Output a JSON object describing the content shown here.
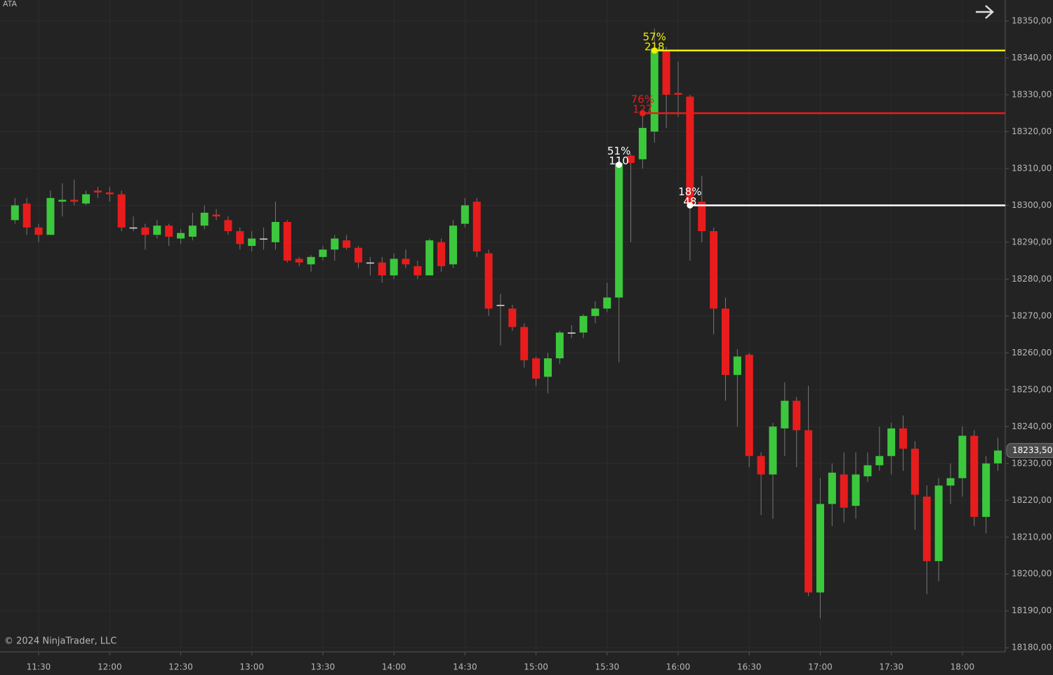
{
  "chart_data": {
    "type": "candlestick",
    "title": "ATA",
    "copyright": "© 2024 NinjaTrader, LLC",
    "categories": [
      null,
      null,
      "11:30",
      null,
      null,
      null,
      null,
      null,
      "12:00",
      null,
      null,
      null,
      null,
      null,
      "12:30",
      null,
      null,
      null,
      null,
      null,
      "13:00",
      null,
      null,
      null,
      null,
      null,
      "13:30",
      null,
      null,
      null,
      null,
      null,
      "14:00",
      null,
      null,
      null,
      null,
      null,
      "14:30",
      null,
      null,
      null,
      null,
      null,
      "15:00",
      null,
      null,
      null,
      null,
      null,
      "15:30",
      null,
      null,
      null,
      null,
      null,
      "16:00",
      null,
      null,
      null,
      null,
      null,
      "16:30",
      null,
      null,
      null,
      null,
      null,
      "17:00",
      null,
      null,
      null,
      null,
      null,
      "17:30",
      null,
      null,
      null,
      null,
      null,
      "18:00",
      null,
      null,
      null
    ],
    "open": [
      18296,
      18300.5,
      18294,
      18292,
      18301,
      18301.5,
      18300.5,
      18304,
      18303.5,
      18303,
      18294,
      18294,
      18292,
      18294.5,
      18291,
      18291.5,
      18294.5,
      18297.5,
      18296,
      18293,
      18289,
      18291,
      18290,
      18295.5,
      18285.5,
      18284,
      18286,
      18288,
      18290.5,
      18288.5,
      18284.5,
      18284.5,
      18281,
      18285.5,
      18283.5,
      18281,
      18290,
      18284,
      18295,
      18301,
      18287,
      18273,
      18272,
      18267,
      18258.5,
      18253.5,
      18258.5,
      18265.5,
      18265.5,
      18270,
      18272,
      18275,
      18313.5,
      18312.5,
      18320,
      18342,
      18330.5,
      18329.5,
      18301,
      18293,
      18272,
      18254,
      18259.5,
      18232,
      18227,
      18239.5,
      18247,
      18239,
      18195,
      18219,
      18227,
      18218.5,
      18226.5,
      18229.5,
      18232,
      18239.5,
      18234,
      18221,
      18203.5,
      18224,
      18226,
      18237.5,
      18215.5,
      18230
    ],
    "high": [
      18302,
      18302,
      18295,
      18304,
      18306,
      18307,
      18304,
      18305,
      18305,
      18304,
      18297,
      18295,
      18296,
      18295,
      18293.5,
      18298,
      18300,
      18299,
      18297,
      18294,
      18293,
      18294,
      18301,
      18296,
      18286,
      18286.5,
      18289,
      18292,
      18292,
      18289,
      18286,
      18286,
      18287,
      18288,
      18285,
      18291,
      18291,
      18296,
      18302,
      18302,
      18288,
      18276,
      18273,
      18268,
      18259,
      18260,
      18266,
      18267.5,
      18270.5,
      18274,
      18279,
      18313,
      18314,
      18326,
      18348,
      18343,
      18339,
      18330,
      18308,
      18294,
      18275,
      18261,
      18260,
      18233,
      18241,
      18252,
      18248,
      18251,
      18226,
      18230,
      18233,
      18233,
      18233,
      18240,
      18241,
      18243,
      18236,
      18224,
      18226,
      18230,
      18240,
      18239,
      18232,
      18237
    ],
    "low": [
      18295,
      18292,
      18290,
      18292,
      18297,
      18300,
      18300,
      18302,
      18301,
      18293,
      18293,
      18288,
      18291,
      18289,
      18289.5,
      18290.5,
      18293.5,
      18296,
      18292,
      18288,
      18287.5,
      18288,
      18288,
      18284.5,
      18283.5,
      18282,
      18285,
      18285,
      18288,
      18283,
      18281,
      18279,
      18280,
      18283,
      18280,
      18281,
      18282,
      18283,
      18294,
      18286,
      18270,
      18262,
      18266,
      18256,
      18251,
      18249,
      18257,
      18264,
      18264,
      18268,
      18271,
      18257.5,
      18290,
      18310,
      18317,
      18321,
      18324,
      18285,
      18290,
      18265,
      18247,
      18240,
      18229,
      18216,
      18215,
      18232,
      18229,
      18194,
      18188,
      18213,
      18214,
      18215,
      18225,
      18228,
      18227,
      18228,
      18212,
      18194.5,
      18198,
      18219,
      18221,
      18213,
      18211,
      18228
    ],
    "close": [
      18300,
      18294,
      18292,
      18302,
      18301.5,
      18301,
      18303,
      18303.5,
      18303,
      18294,
      18294,
      18292,
      18294.5,
      18291.5,
      18292.5,
      18294.5,
      18298,
      18297,
      18293,
      18289.5,
      18291,
      18291,
      18295.5,
      18285,
      18284.5,
      18286,
      18288,
      18291,
      18288.5,
      18284.5,
      18284.5,
      18281,
      18285.5,
      18284,
      18281,
      18290.5,
      18283.5,
      18294.5,
      18300,
      18287.5,
      18272,
      18273,
      18267,
      18258,
      18253,
      18258.5,
      18265.5,
      18265.5,
      18270,
      18272,
      18275,
      18311.5,
      18311.5,
      18321,
      18342.5,
      18330,
      18330,
      18300.5,
      18293,
      18272,
      18254,
      18259,
      18232,
      18227,
      18240,
      18247,
      18239,
      18195,
      18219,
      18227.5,
      18218,
      18227,
      18229.5,
      18232,
      18239.5,
      18234,
      18221.5,
      18203.5,
      18224,
      18226,
      18237.5,
      18215.5,
      18230,
      18233.5
    ],
    "up_color": "#3cc83c",
    "down_color": "#e81c1c",
    "doji_color": "#e0e0e0",
    "ylim": [
      18178.9,
      18355.7
    ],
    "yticks": [
      {
        "value": 18180,
        "label": "18180,00"
      },
      {
        "value": 18190,
        "label": "18190,00"
      },
      {
        "value": 18200,
        "label": "18200,00"
      },
      {
        "value": 18210,
        "label": "18210,00"
      },
      {
        "value": 18220,
        "label": "18220,00"
      },
      {
        "value": 18230,
        "label": "18230,00"
      },
      {
        "value": 18240,
        "label": "18240,00"
      },
      {
        "value": 18250,
        "label": "18250,00"
      },
      {
        "value": 18260,
        "label": "18260,00"
      },
      {
        "value": 18270,
        "label": "18270,00"
      },
      {
        "value": 18280,
        "label": "18280,00"
      },
      {
        "value": 18290,
        "label": "18290,00"
      },
      {
        "value": 18300,
        "label": "18300,00"
      },
      {
        "value": 18310,
        "label": "18310,00"
      },
      {
        "value": 18320,
        "label": "18320,00"
      },
      {
        "value": 18330,
        "label": "18330,00"
      },
      {
        "value": 18340,
        "label": "18340,00"
      },
      {
        "value": 18350,
        "label": "18350,00"
      }
    ],
    "grid": true,
    "last_price": {
      "value": 18233.5,
      "label": "18233,50"
    },
    "levels": [
      {
        "bar": 51,
        "price": 18311,
        "color": "#ffffff",
        "pct": "51%",
        "count": "110",
        "extend": false
      },
      {
        "bar": 53,
        "price": 18325,
        "color": "#e81c1c",
        "pct": "76%",
        "count": "127",
        "extend": true
      },
      {
        "bar": 54,
        "price": 18342,
        "color": "#f0f000",
        "pct": "57%",
        "count": "218",
        "extend": true
      },
      {
        "bar": 57,
        "price": 18300,
        "color": "#ffffff",
        "pct": "18%",
        "count": "48",
        "extend": true
      }
    ]
  }
}
